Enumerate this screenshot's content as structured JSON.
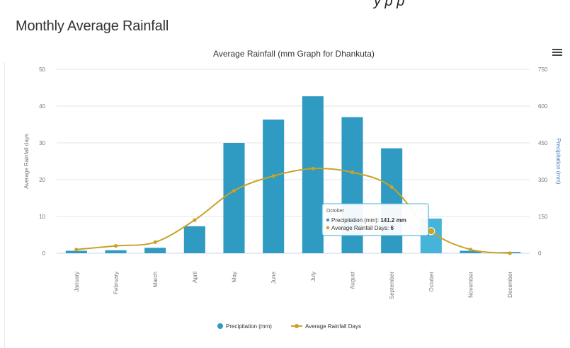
{
  "page": {
    "title": "Monthly Average Rainfall",
    "top_fragment": "y p  p"
  },
  "chart_data": {
    "type": "bar",
    "title": "Average Rainfall (mm Graph for Dhankuta)",
    "categories": [
      "January",
      "February",
      "March",
      "April",
      "May",
      "June",
      "July",
      "August",
      "September",
      "October",
      "November",
      "December"
    ],
    "series": [
      {
        "name": "Precipitation (mm)",
        "type": "bar",
        "axis": "right",
        "color": "#2f9bc2",
        "values": [
          10,
          12,
          22,
          110,
          450,
          545,
          640,
          555,
          428,
          141.2,
          10,
          5
        ]
      },
      {
        "name": "Average Rainfall Days",
        "type": "line",
        "axis": "left",
        "color": "#c9a227",
        "values": [
          1,
          2,
          3,
          9,
          17,
          21,
          23,
          22,
          18,
          6,
          1,
          0
        ]
      }
    ],
    "left_axis": {
      "label": "Average Rainfall days",
      "min": 0,
      "max": 50,
      "ticks": [
        "0",
        "10",
        "20",
        "30",
        "40",
        "50"
      ]
    },
    "right_axis": {
      "label": "Precipitation (mm)",
      "min": 0,
      "max": 750,
      "ticks": [
        "0",
        "150",
        "300",
        "450",
        "600",
        "750"
      ]
    },
    "grid": true,
    "legend_position": "bottom-center",
    "tooltip": {
      "category_index": 9,
      "header": "October",
      "line1_label": "Precipitation (mm): ",
      "line1_value": "141.2 mm",
      "line2_label": "Average Rainfall Days: ",
      "line2_value": "6"
    }
  }
}
